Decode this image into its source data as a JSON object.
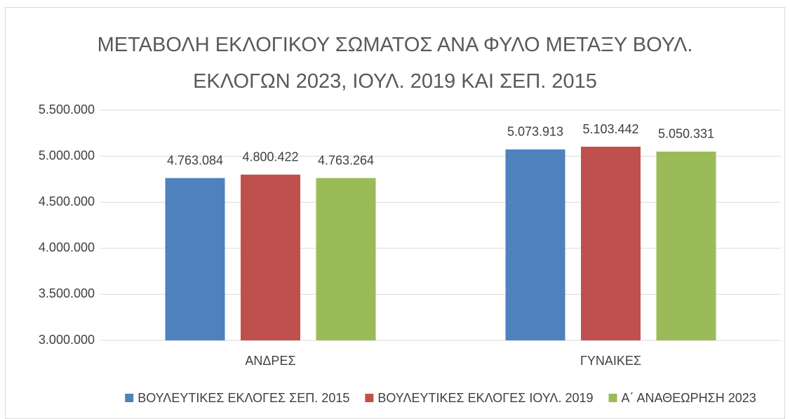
{
  "chart_data": {
    "type": "bar",
    "title": "ΜΕΤΑΒΟΛΗ ΕΚΛΟΓΙΚΟΥ ΣΩΜΑΤΟΣ ΑΝΑ ΦΥΛΟ ΜΕΤΑΞΥ ΒΟΥΛ. ΕΚΛΟΓΩΝ 2023, ΙΟΥΛ. 2019 ΚΑΙ ΣΕΠ. 2015",
    "categories": [
      "ΑΝΔΡΕΣ",
      "ΓΥΝΑΙΚΕΣ"
    ],
    "series": [
      {
        "name": "ΒΟΥΛΕΥΤΙΚΕΣ ΕΚΛΟΓΕΣ ΣΕΠ. 2015",
        "color": "#4f81bd",
        "values": [
          4763084,
          5073913
        ],
        "value_labels": [
          "4.763.084",
          "5.073.913"
        ]
      },
      {
        "name": "ΒΟΥΛΕΥΤΙΚΕΣ ΕΚΛΟΓΕΣ ΙΟΥΛ. 2019",
        "color": "#c0504d",
        "values": [
          4800422,
          5103442
        ],
        "value_labels": [
          "4.800.422",
          "5.103.442"
        ]
      },
      {
        "name": "Α΄ ΑΝΑΘΕΩΡΗΣΗ 2023",
        "color": "#9bbb59",
        "values": [
          4763264,
          5050331
        ],
        "value_labels": [
          "4.763.264",
          "5.050.331"
        ]
      }
    ],
    "ylim": [
      3000000,
      5500000
    ],
    "yticks": [
      {
        "value": 3000000,
        "label": "3.000.000"
      },
      {
        "value": 3500000,
        "label": "3.500.000"
      },
      {
        "value": 4000000,
        "label": "4.000.000"
      },
      {
        "value": 4500000,
        "label": "4.500.000"
      },
      {
        "value": 5000000,
        "label": "5.000.000"
      },
      {
        "value": 5500000,
        "label": "5.500.000"
      }
    ],
    "grid": true,
    "legend": "bottom"
  }
}
